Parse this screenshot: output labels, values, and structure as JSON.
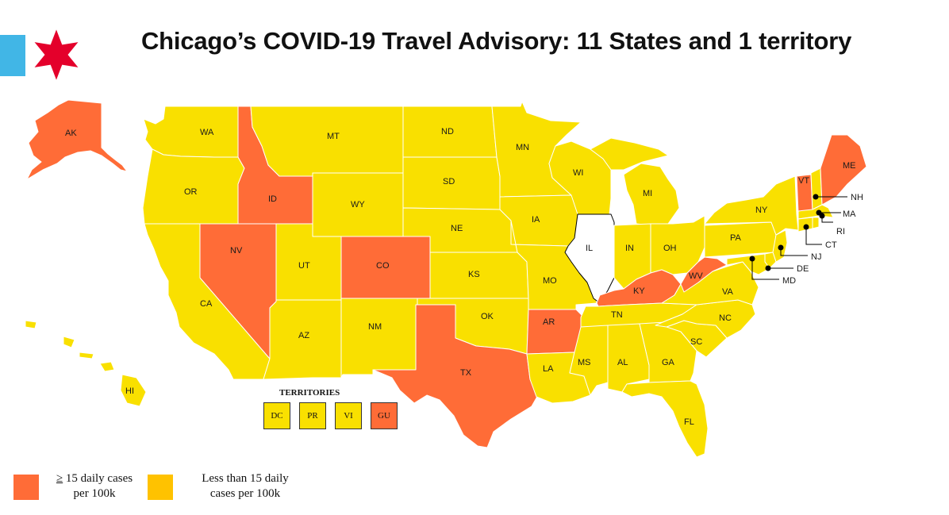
{
  "title": "Chicago’s COVID-19 Travel Advisory: 11 States and 1 territory",
  "colors": {
    "high": "#FF6C37",
    "low": "#F9E000",
    "low_legend": "#FFC200",
    "illinois": "#FFFFFF",
    "flag_blue": "#41B6E6",
    "flag_red": "#E4002B",
    "border": "#FFFFFF"
  },
  "icons": {
    "flag": "chicago-flag-star-icon"
  },
  "states": {
    "WA": "WA",
    "OR": "OR",
    "CA": "CA",
    "NV": "NV",
    "ID": "ID",
    "MT": "MT",
    "WY": "WY",
    "UT": "UT",
    "AZ": "AZ",
    "CO": "CO",
    "NM": "NM",
    "ND": "ND",
    "SD": "SD",
    "NE": "NE",
    "KS": "KS",
    "OK": "OK",
    "TX": "TX",
    "MN": "MN",
    "IA": "IA",
    "MO": "MO",
    "AR": "AR",
    "LA": "LA",
    "WI": "WI",
    "IL": "IL",
    "MI": "MI",
    "IN": "IN",
    "OH": "OH",
    "KY": "KY",
    "TN": "TN",
    "MS": "MS",
    "AL": "AL",
    "GA": "GA",
    "FL": "FL",
    "SC": "SC",
    "NC": "NC",
    "VA": "VA",
    "WV": "WV",
    "PA": "PA",
    "NY": "NY",
    "VT": "VT",
    "ME": "ME",
    "NH": "NH",
    "MA": "MA",
    "RI": "RI",
    "CT": "CT",
    "NJ": "NJ",
    "DE": "DE",
    "MD": "MD",
    "AK": "AK",
    "HI": "HI"
  },
  "territories": {
    "title": "TERRITORIES",
    "items": [
      {
        "label": "DC",
        "status": "low"
      },
      {
        "label": "PR",
        "status": "low"
      },
      {
        "label": "VI",
        "status": "low"
      },
      {
        "label": "GU",
        "status": "high"
      }
    ]
  },
  "legend": {
    "high_prefix": "≥",
    "high_line1": " 15 daily cases",
    "high_line2": "per 100k",
    "low_line1": "Less than 15 daily",
    "low_line2": "cases per 100k"
  }
}
